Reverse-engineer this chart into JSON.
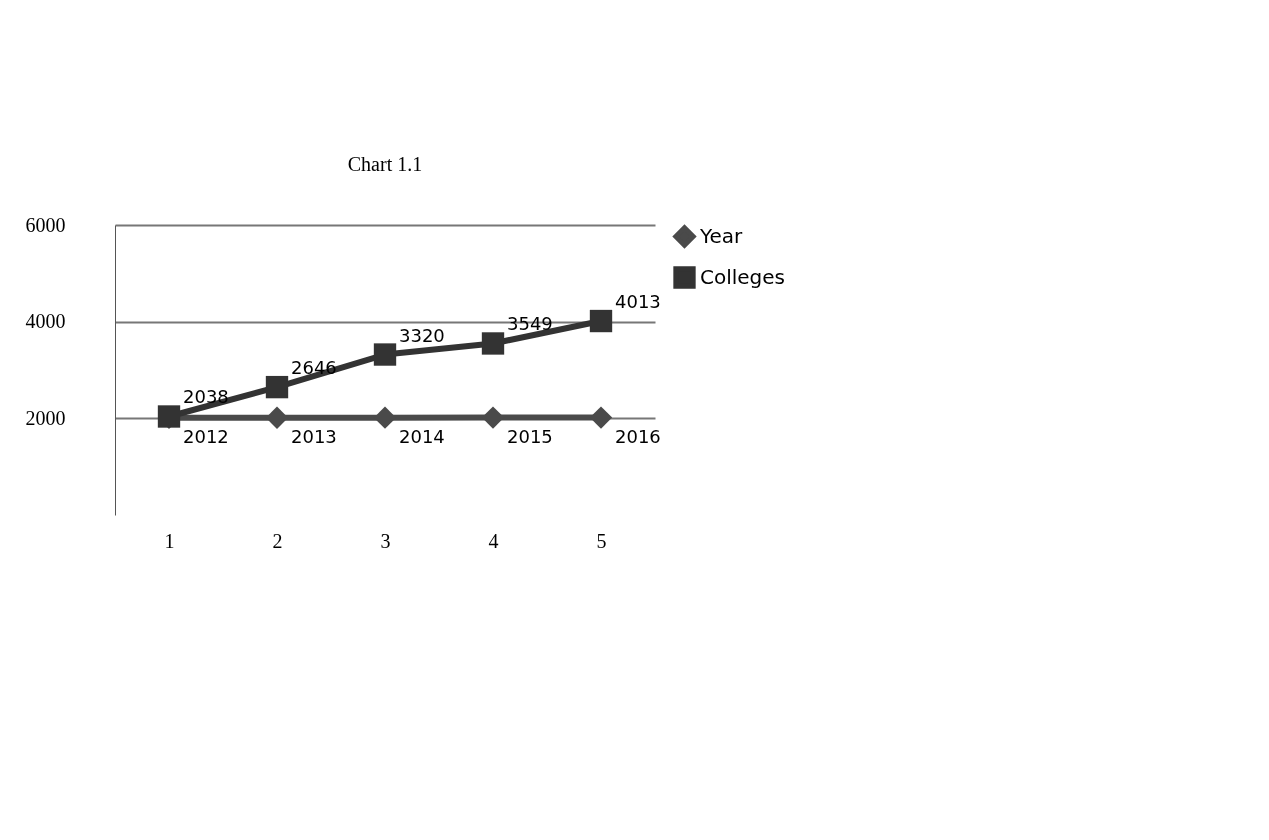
{
  "chart_data": {
    "type": "line",
    "title": "Chart 1.1",
    "categories": [
      "1",
      "2",
      "3",
      "4",
      "5"
    ],
    "series": [
      {
        "name": "Year",
        "color": "#4a4a4a",
        "marker": "diamond",
        "values": [
          2012,
          2013,
          2014,
          2015,
          2016
        ]
      },
      {
        "name": "Colleges",
        "color": "#333333",
        "marker": "square",
        "values": [
          2038,
          2646,
          3320,
          3549,
          4013
        ]
      }
    ],
    "ylim": [
      0,
      6000
    ],
    "yticks": [
      2000,
      4000,
      6000
    ],
    "grid": "y",
    "legend": "right",
    "data_labels": true
  }
}
